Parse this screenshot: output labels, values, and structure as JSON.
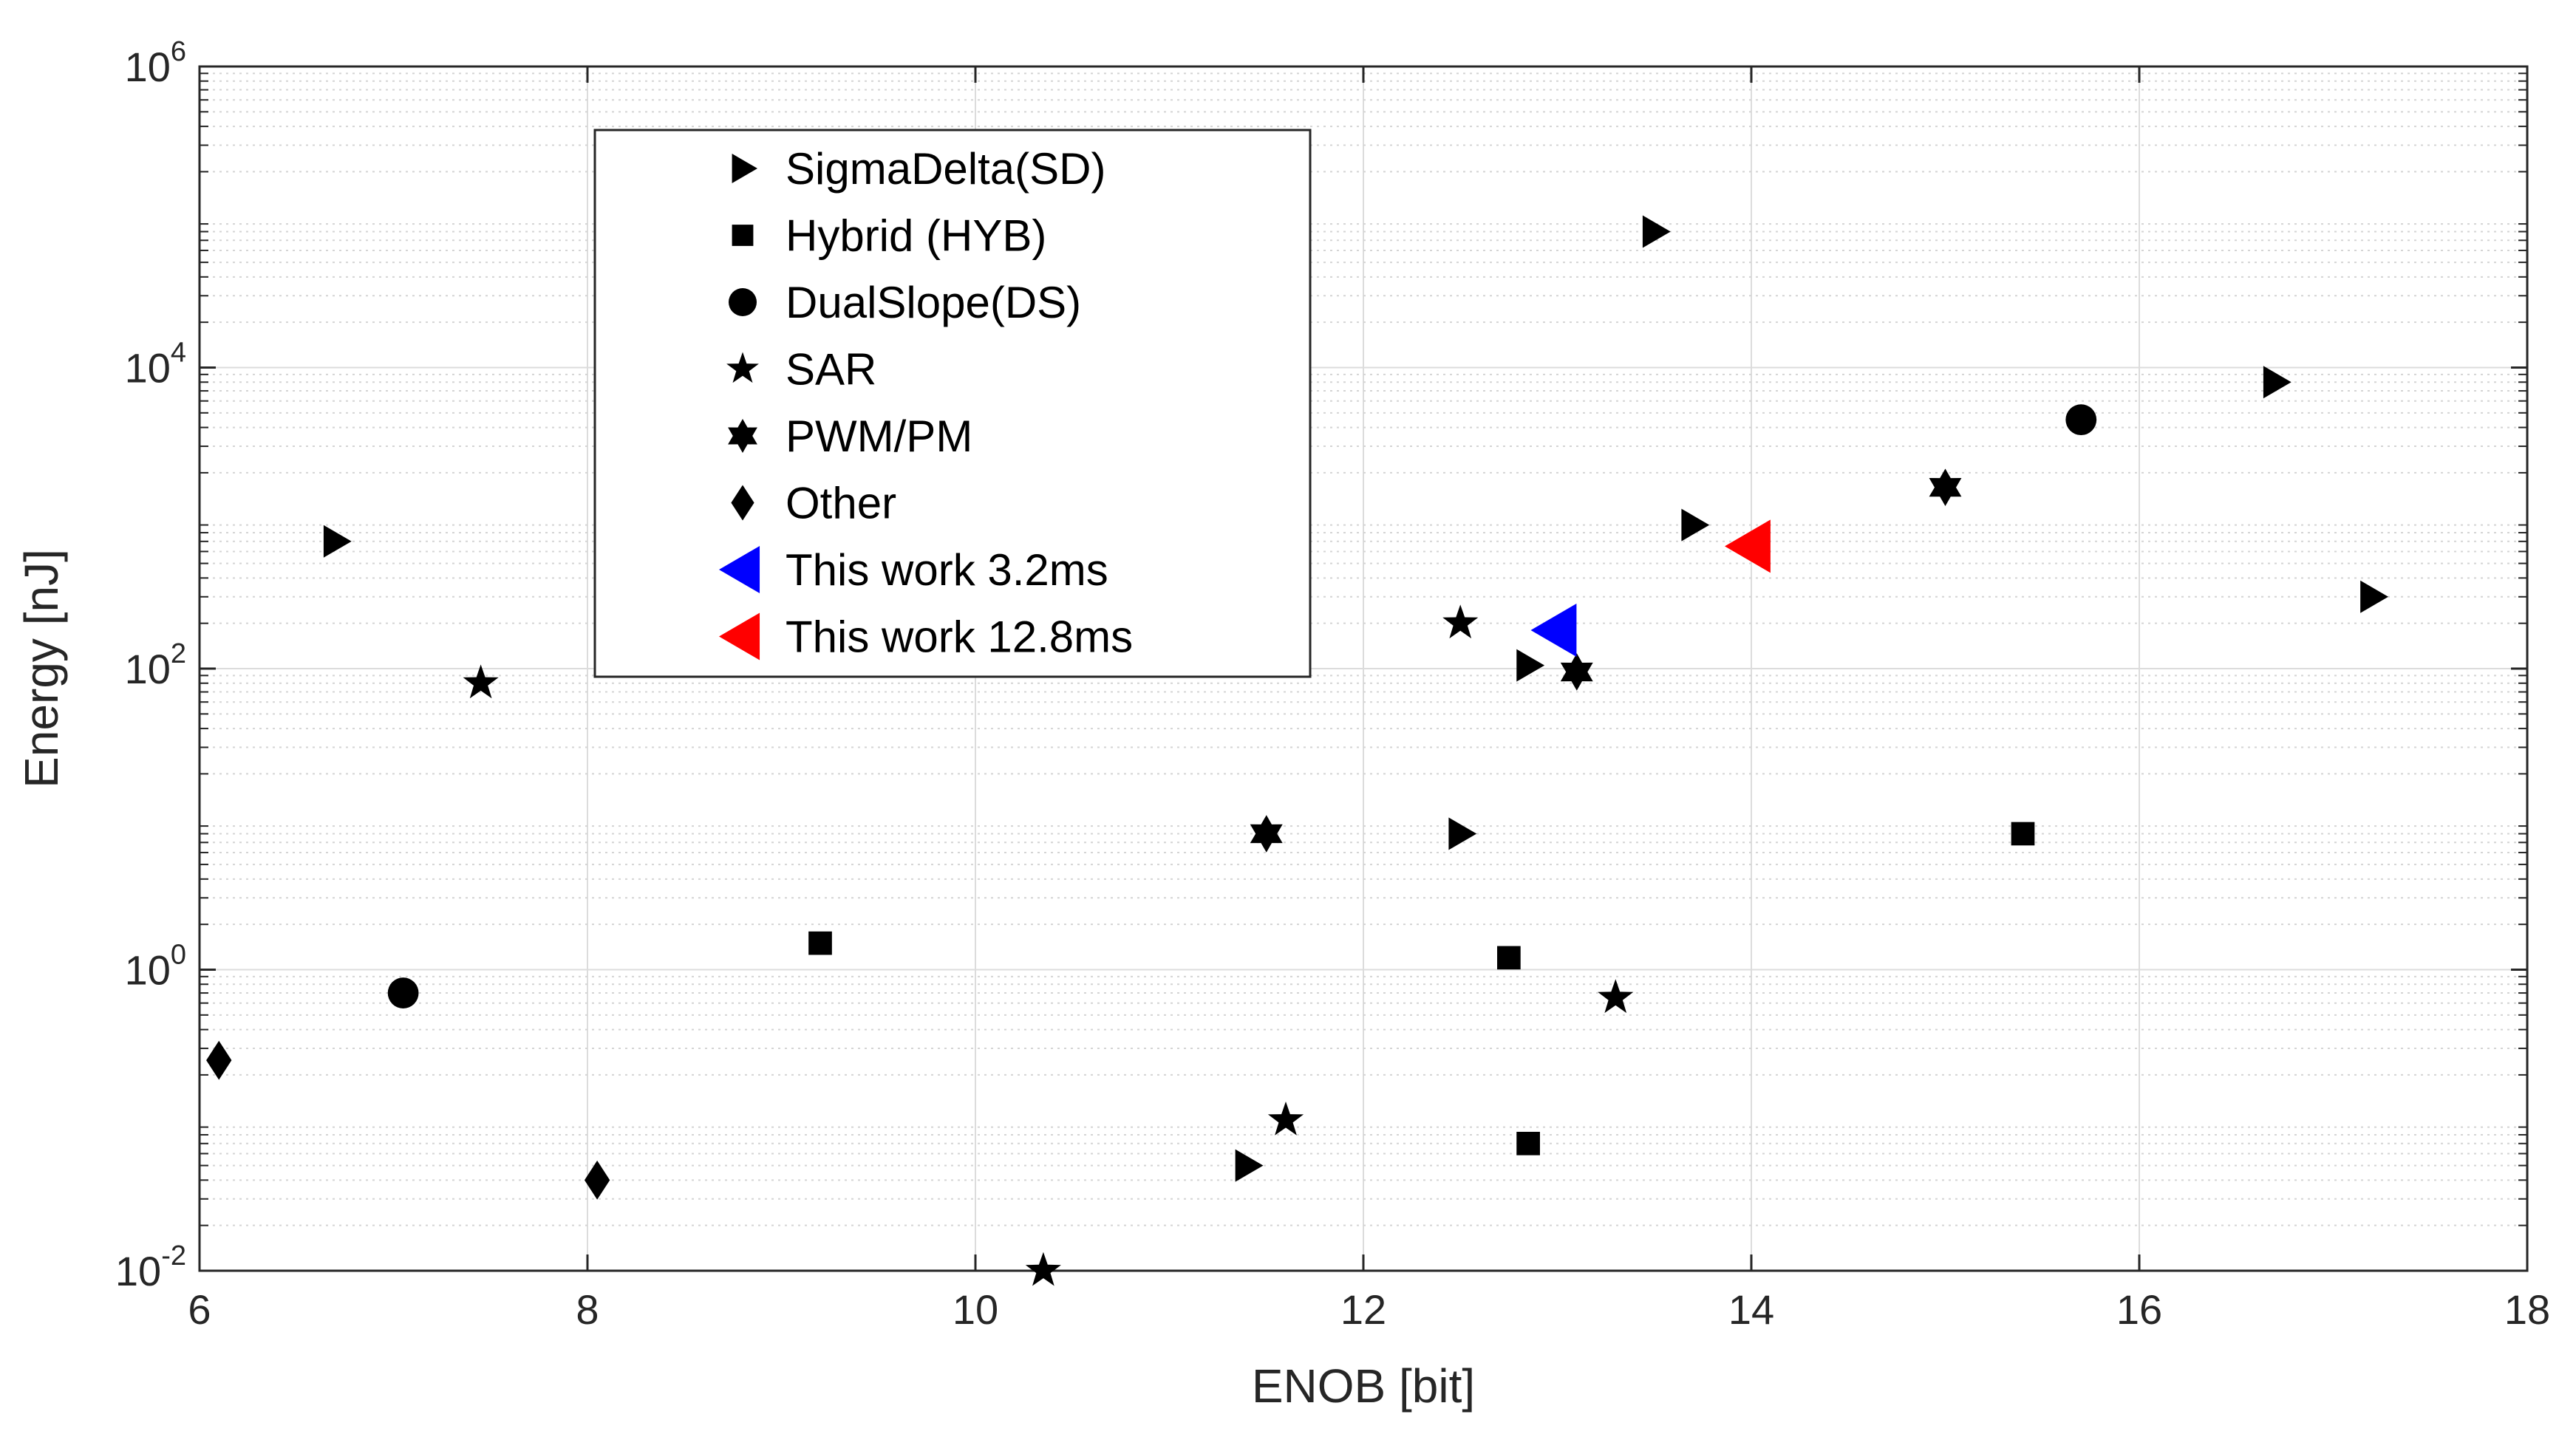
{
  "chart_data": {
    "type": "scatter",
    "title": "",
    "xlabel": "ENOB [bit]",
    "ylabel": "Energy [nJ]",
    "xlim": [
      6,
      18
    ],
    "ylim": [
      0.01,
      1000000
    ],
    "yscale": "log",
    "grid": true,
    "minor_grid": true,
    "x_ticks": [
      6,
      8,
      10,
      12,
      14,
      16,
      18
    ],
    "y_ticks": [
      {
        "value": 0.01,
        "base": "10",
        "exp": "-2"
      },
      {
        "value": 1,
        "base": "10",
        "exp": "0"
      },
      {
        "value": 100,
        "base": "10",
        "exp": "2"
      },
      {
        "value": 10000,
        "base": "10",
        "exp": "4"
      },
      {
        "value": 1000000,
        "base": "10",
        "exp": "6"
      }
    ],
    "legend_position": "top-left",
    "series": [
      {
        "name": "SigmaDelta(SD)",
        "marker": "triangle-right",
        "color": "#000000",
        "points": [
          [
            6.7,
            700
          ],
          [
            13.5,
            80000
          ],
          [
            13.7,
            900
          ],
          [
            16.7,
            8000
          ],
          [
            17.2,
            300
          ],
          [
            12.85,
            105
          ],
          [
            12.5,
            8
          ],
          [
            11.4,
            0.05
          ]
        ]
      },
      {
        "name": "Hybrid (HYB)",
        "marker": "square",
        "color": "#000000",
        "points": [
          [
            9.2,
            1.5
          ],
          [
            12.75,
            1.2
          ],
          [
            12.85,
            0.07
          ],
          [
            15.4,
            8
          ]
        ]
      },
      {
        "name": "DualSlope(DS)",
        "marker": "circle",
        "color": "#000000",
        "points": [
          [
            7.05,
            0.7
          ],
          [
            15.7,
            4500
          ]
        ]
      },
      {
        "name": "SAR",
        "marker": "pentagram",
        "color": "#000000",
        "points": [
          [
            7.45,
            80
          ],
          [
            12.5,
            200
          ],
          [
            13.3,
            0.65
          ],
          [
            11.6,
            0.1
          ],
          [
            10.35,
            0.01
          ]
        ]
      },
      {
        "name": "PWM/PM",
        "marker": "hexagram",
        "color": "#000000",
        "points": [
          [
            11.5,
            8
          ],
          [
            13.1,
            95
          ],
          [
            15.0,
            1600
          ]
        ]
      },
      {
        "name": "Other",
        "marker": "diamond",
        "color": "#000000",
        "points": [
          [
            6.1,
            0.25
          ],
          [
            8.05,
            0.04
          ]
        ]
      },
      {
        "name": "This work 3.2ms",
        "marker": "triangle-left",
        "color": "#0000ff",
        "points": [
          [
            13.0,
            180
          ]
        ]
      },
      {
        "name": "This work 12.8ms",
        "marker": "triangle-left",
        "color": "#ff0000",
        "points": [
          [
            14.0,
            650
          ]
        ]
      }
    ]
  }
}
